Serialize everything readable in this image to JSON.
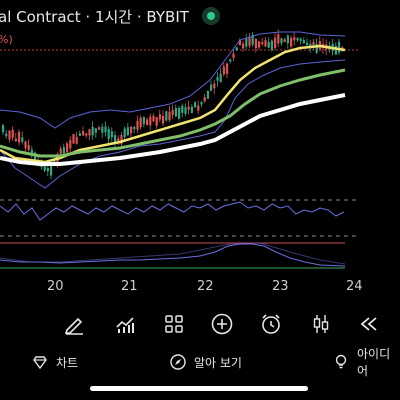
{
  "header": {
    "title": "al Contract · 1시간 · BYBIT",
    "pct": "%)"
  },
  "dates": [
    "20",
    "21",
    "22",
    "23",
    "24"
  ],
  "toolbar": {
    "icons": [
      "draw-pen-icon",
      "indicator-chart-icon",
      "layout-grid-icon",
      "add-plus-icon",
      "alarm-clock-icon",
      "candle-type-icon",
      "replay-rewind-icon"
    ]
  },
  "bottom_nav": {
    "items": [
      {
        "label": "차트",
        "icon": "diamond-chart-icon"
      },
      {
        "label": "알아 보기",
        "icon": "compass-icon"
      },
      {
        "label": "아이디어",
        "icon": "lightbulb-icon"
      }
    ]
  },
  "colors": {
    "up": "#2fa784",
    "down": "#e0524f",
    "ma_yellow": "#f0e370",
    "ma_green": "#7fbf6a",
    "ma_white": "#ffffff",
    "bollinger": "#5b63d8",
    "live": "#2ecc8f"
  }
}
